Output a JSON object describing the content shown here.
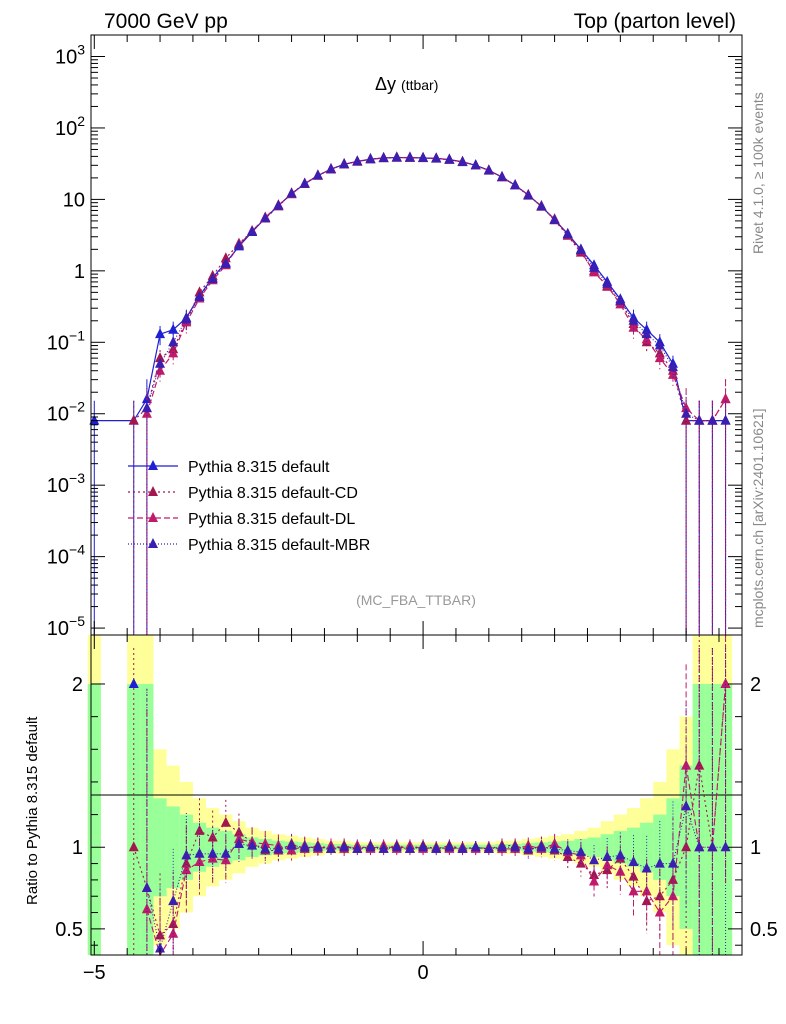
{
  "header": {
    "left": "7000 GeV pp",
    "right": "Top (parton level)"
  },
  "side_labels": {
    "rivet": "Rivet 4.1.0, ≥ 100k events",
    "mcplots": "mcplots.cern.ch [arXiv:2401.10621]"
  },
  "chart_data": [
    {
      "type": "line",
      "panel": "main",
      "title": "Δy",
      "title_sub": "(ttbar)",
      "watermark": "(MC_FBA_TTBAR)",
      "yscale": "log",
      "xlim": [
        -5.05,
        4.85
      ],
      "ylim": [
        8e-06,
        2000
      ],
      "y_ticks": [
        {
          "value": 1000,
          "base": "10",
          "exp": "3"
        },
        {
          "value": 100,
          "base": "10",
          "exp": "2"
        },
        {
          "value": 10,
          "base": "10",
          "exp": ""
        },
        {
          "value": 1,
          "base": "1",
          "exp": ""
        },
        {
          "value": 0.1,
          "base": "10",
          "exp": "−1"
        },
        {
          "value": 0.01,
          "base": "10",
          "exp": "−2"
        },
        {
          "value": 0.001,
          "base": "10",
          "exp": "−3"
        },
        {
          "value": 0.0001,
          "base": "10",
          "exp": "−4"
        },
        {
          "value": 1e-05,
          "base": "10",
          "exp": "−5"
        }
      ],
      "legend": [
        {
          "label": "Pythia 8.315 default",
          "color": "#1f1fd4",
          "dash": ""
        },
        {
          "label": "Pythia 8.315 default-CD",
          "color": "#a3174f",
          "dash": "2,3"
        },
        {
          "label": "Pythia 8.315 default-DL",
          "color": "#c01a6a",
          "dash": "6,3"
        },
        {
          "label": "Pythia 8.315 default-MBR",
          "color": "#3a1fb0",
          "dash": "1,2"
        }
      ],
      "x": [
        -5.0,
        -4.4,
        -4.2,
        -4.0,
        -3.8,
        -3.6,
        -3.4,
        -3.2,
        -3.0,
        -2.8,
        -2.6,
        -2.4,
        -2.2,
        -2.0,
        -1.8,
        -1.6,
        -1.4,
        -1.2,
        -1.0,
        -0.8,
        -0.6,
        -0.4,
        -0.2,
        0.0,
        0.2,
        0.4,
        0.6,
        0.8,
        1.0,
        1.2,
        1.4,
        1.6,
        1.8,
        2.0,
        2.2,
        2.4,
        2.6,
        2.8,
        3.0,
        3.2,
        3.4,
        3.6,
        3.8,
        4.0,
        4.2,
        4.4,
        4.6
      ],
      "series": [
        {
          "name": "Pythia 8.315 default",
          "values": [
            0.008,
            0.008,
            0.016,
            0.13,
            0.15,
            0.22,
            0.45,
            0.8,
            1.3,
            2.2,
            3.5,
            5.5,
            8.2,
            12.0,
            16.5,
            21.5,
            26.5,
            31.0,
            34.0,
            36.5,
            38.0,
            38.5,
            38.5,
            38.0,
            37.5,
            36.0,
            33.5,
            30.0,
            25.5,
            20.5,
            15.8,
            11.5,
            8.0,
            5.2,
            3.3,
            2.0,
            1.2,
            0.7,
            0.4,
            0.22,
            0.15,
            0.1,
            0.05,
            0.008,
            0.008,
            0.008,
            0.008
          ]
        },
        {
          "name": "Pythia 8.315 default-CD",
          "values": [
            null,
            0.008,
            0.012,
            0.06,
            0.08,
            0.2,
            0.5,
            0.85,
            1.5,
            2.4,
            3.6,
            5.4,
            8.0,
            12.2,
            16.4,
            21.8,
            26.2,
            31.4,
            33.6,
            36.9,
            37.7,
            38.8,
            38.2,
            38.3,
            37.2,
            36.3,
            33.3,
            30.1,
            25.3,
            20.7,
            15.9,
            11.3,
            8.1,
            5.1,
            3.1,
            1.8,
            1.0,
            0.6,
            0.37,
            0.18,
            0.1,
            0.07,
            0.04,
            0.008,
            0.008,
            0.008,
            0.016
          ]
        },
        {
          "name": "Pythia 8.315 default-DL",
          "values": [
            null,
            null,
            0.01,
            0.04,
            0.07,
            0.19,
            0.41,
            0.74,
            1.2,
            2.3,
            3.6,
            5.6,
            8.3,
            11.8,
            16.7,
            21.4,
            26.7,
            30.8,
            34.2,
            36.3,
            38.2,
            38.3,
            38.7,
            37.8,
            37.6,
            35.8,
            33.7,
            29.9,
            25.6,
            20.3,
            15.7,
            11.6,
            7.9,
            5.3,
            3.2,
            1.9,
            0.95,
            0.62,
            0.34,
            0.16,
            0.11,
            0.06,
            0.035,
            0.012,
            0.008,
            0.008,
            0.016
          ]
        },
        {
          "name": "Pythia 8.315 default-MBR",
          "values": [
            null,
            null,
            0.012,
            0.05,
            0.1,
            0.21,
            0.43,
            0.77,
            1.25,
            2.25,
            3.55,
            5.45,
            8.15,
            12.1,
            16.6,
            21.6,
            26.4,
            31.1,
            33.9,
            36.6,
            37.9,
            38.6,
            38.4,
            38.1,
            37.4,
            36.1,
            33.4,
            30.0,
            25.4,
            20.6,
            15.8,
            11.4,
            8.0,
            5.15,
            3.25,
            1.95,
            1.1,
            0.66,
            0.38,
            0.2,
            0.13,
            0.09,
            0.045,
            0.01,
            0.008,
            0.008,
            0.008
          ]
        }
      ]
    },
    {
      "type": "line",
      "panel": "ratio",
      "ylabel": "Ratio to Pythia 8.315 default",
      "xlim": [
        -5.05,
        4.85
      ],
      "ylim": [
        0.34,
        2.3
      ],
      "x_ticks": [
        -5,
        0
      ],
      "x_tick_labels": [
        "−5",
        "0"
      ],
      "y_ticks": [
        0.5,
        1,
        2
      ],
      "y_tick_labels": [
        "0.5",
        "1",
        "2"
      ],
      "band_colors": {
        "inner": "#99ff99",
        "outer": "#ffff99"
      },
      "band_inner_halfwidth": [
        1.0,
        1.0,
        1.0,
        0.3,
        0.25,
        0.2,
        0.15,
        0.12,
        0.1,
        0.08,
        0.06,
        0.05,
        0.04,
        0.035,
        0.03,
        0.025,
        0.02,
        0.02,
        0.015,
        0.015,
        0.015,
        0.015,
        0.015,
        0.015,
        0.015,
        0.015,
        0.015,
        0.015,
        0.015,
        0.02,
        0.02,
        0.025,
        0.03,
        0.035,
        0.04,
        0.05,
        0.06,
        0.08,
        0.1,
        0.12,
        0.15,
        0.2,
        0.3,
        0.5,
        1.0,
        1.0,
        1.0
      ],
      "band_outer_halfwidth": [
        1.5,
        1.5,
        1.5,
        0.6,
        0.5,
        0.4,
        0.3,
        0.24,
        0.2,
        0.16,
        0.12,
        0.1,
        0.08,
        0.07,
        0.06,
        0.05,
        0.04,
        0.04,
        0.03,
        0.03,
        0.03,
        0.03,
        0.03,
        0.03,
        0.03,
        0.03,
        0.03,
        0.03,
        0.03,
        0.04,
        0.04,
        0.05,
        0.06,
        0.07,
        0.08,
        0.1,
        0.12,
        0.16,
        0.2,
        0.24,
        0.3,
        0.4,
        0.6,
        0.8,
        1.5,
        1.5,
        1.5
      ],
      "series": [
        {
          "name": "Pythia 8.315 default-CD",
          "values": [
            null,
            1.0,
            0.75,
            0.46,
            0.53,
            0.9,
            1.1,
            1.06,
            1.15,
            1.09,
            1.03,
            0.98,
            0.98,
            1.02,
            0.99,
            1.01,
            0.99,
            1.01,
            0.99,
            1.01,
            0.99,
            1.01,
            0.99,
            1.01,
            0.99,
            1.01,
            0.99,
            1.0,
            0.99,
            1.01,
            1.01,
            0.98,
            1.01,
            0.98,
            0.94,
            0.9,
            0.83,
            0.86,
            0.93,
            0.82,
            0.67,
            0.7,
            0.8,
            1.0,
            1.5,
            1.0,
            2.0
          ]
        },
        {
          "name": "Pythia 8.315 default-DL",
          "values": [
            null,
            null,
            0.62,
            0.31,
            0.47,
            0.86,
            0.91,
            0.93,
            0.92,
            1.05,
            1.03,
            1.02,
            1.01,
            0.98,
            1.01,
            0.99,
            1.01,
            0.99,
            1.01,
            0.99,
            1.01,
            0.99,
            1.01,
            0.99,
            1.0,
            0.99,
            1.0,
            0.99,
            1.0,
            0.99,
            0.99,
            1.01,
            0.99,
            1.02,
            0.97,
            0.95,
            0.79,
            0.89,
            0.85,
            0.73,
            0.73,
            0.6,
            0.7,
            1.5,
            1.0,
            1.0,
            2.0
          ]
        },
        {
          "name": "Pythia 8.315 default-MBR",
          "values": [
            null,
            null,
            0.75,
            0.38,
            0.67,
            0.95,
            0.96,
            0.96,
            0.96,
            1.02,
            1.01,
            0.99,
            0.99,
            1.01,
            1.0,
            1.0,
            0.99,
            1.0,
            0.99,
            1.0,
            0.99,
            1.0,
            0.99,
            1.0,
            0.99,
            1.0,
            0.99,
            1.0,
            0.99,
            1.0,
            1.0,
            0.99,
            1.0,
            0.99,
            0.98,
            0.97,
            0.92,
            0.94,
            0.95,
            0.91,
            0.87,
            0.9,
            0.9,
            1.25,
            1.0,
            1.0,
            1.0
          ]
        }
      ]
    }
  ]
}
